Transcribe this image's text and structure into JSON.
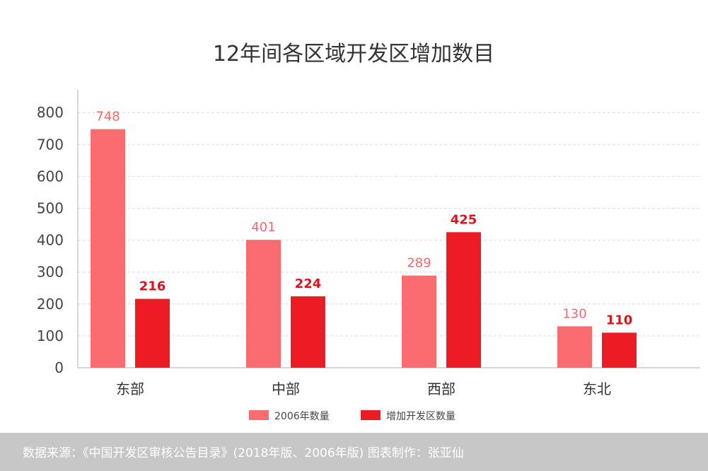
{
  "chart_data": {
    "type": "bar",
    "title": "12年间各区域开发区增加数目",
    "categories": [
      "东部",
      "中部",
      "西部",
      "东北"
    ],
    "series": [
      {
        "name": "2006年数量",
        "values": [
          748,
          401,
          289,
          130
        ],
        "color": "#f86b6f",
        "label_color": "#f4676b"
      },
      {
        "name": "增加开发区数量",
        "values": [
          216,
          224,
          425,
          110
        ],
        "color": "#ec1c24",
        "label_color": "#d8141c"
      }
    ],
    "y_ticks": [
      "0",
      "100",
      "200",
      "300",
      "400",
      "500",
      "600",
      "700",
      "800"
    ],
    "ylim": [
      0,
      870
    ],
    "grid": true,
    "legend_position": "bottom"
  },
  "footer": {
    "source_text": "数据来源：《中国开发区审核公告目录》(2018年版、2006年版)  图表制作：张亚仙"
  },
  "colors": {
    "footer_background": "#c6c6c6",
    "grid": "#dcdcdc",
    "axis": "#b0b0b0"
  }
}
